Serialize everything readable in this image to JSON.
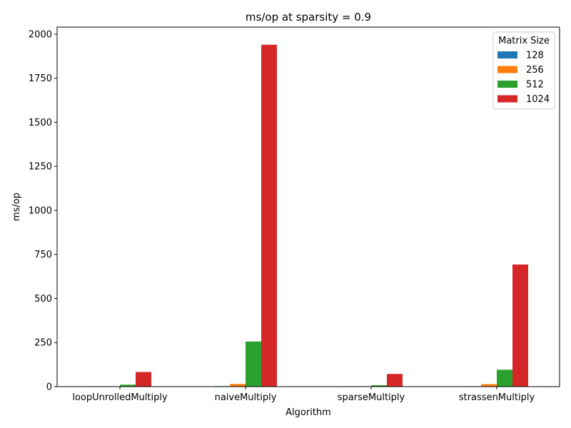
{
  "chart_data": {
    "type": "bar",
    "title": "ms/op at sparsity = 0.9",
    "xlabel": "Algorithm",
    "ylabel": "ms/op",
    "categories": [
      "loopUnrolledMultiply",
      "naiveMultiply",
      "sparseMultiply",
      "strassenMultiply"
    ],
    "series": [
      {
        "name": "128",
        "color": "#1f77b4",
        "values": [
          0.2,
          3,
          0.2,
          2
        ]
      },
      {
        "name": "256",
        "color": "#ff7f0e",
        "values": [
          2,
          15,
          1.5,
          14
        ]
      },
      {
        "name": "512",
        "color": "#2ca02c",
        "values": [
          11,
          256,
          8,
          96
        ]
      },
      {
        "name": "1024",
        "color": "#d62728",
        "values": [
          83,
          1940,
          72,
          693
        ]
      }
    ],
    "yticks": [
      0,
      250,
      500,
      750,
      1000,
      1250,
      1500,
      1750,
      2000
    ],
    "ylim": [
      0,
      2040
    ],
    "grid": false,
    "legend": {
      "title": "Matrix Size",
      "placement": "top-right"
    }
  }
}
